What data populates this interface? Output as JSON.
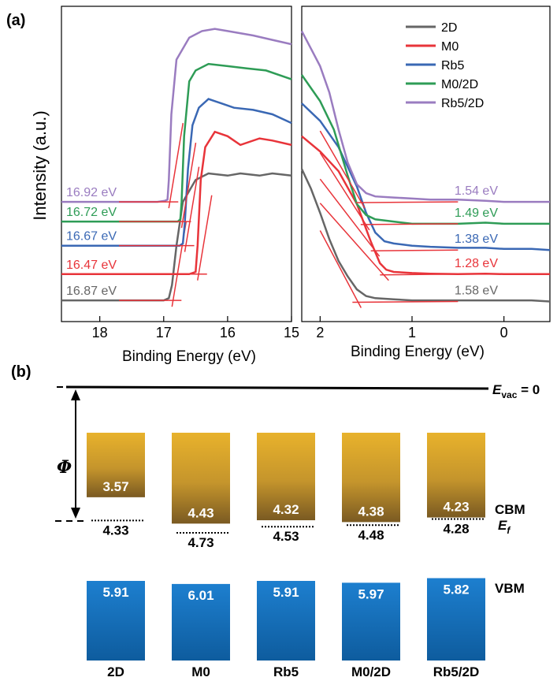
{
  "panel_a_label": "(a)",
  "panel_b_label": "(b)",
  "colors": {
    "2D": "#666666",
    "M0": "#e8343a",
    "Rb5": "#3a68b4",
    "M0/2D": "#2e9c56",
    "Rb5/2D": "#9a7cc0"
  },
  "chart_data": [
    {
      "type": "line",
      "panel": "(a) left",
      "xlabel": "Binding Energy (eV)",
      "ylabel": "Intensity (a.u.)",
      "xlim": [
        18.6,
        15.0
      ],
      "xticks": [
        "18",
        "17",
        "16",
        "15"
      ],
      "series": [
        {
          "name": "2D",
          "cutoff_label": "16.87 eV",
          "x": [
            18.6,
            17.6,
            17.0,
            16.92,
            16.87,
            16.8,
            16.7,
            16.5,
            16.3,
            16.0,
            15.8,
            15.5,
            15.3,
            15.0
          ],
          "y": [
            0.5,
            0.5,
            0.5,
            0.6,
            1.2,
            3.0,
            5.0,
            6.0,
            6.3,
            6.2,
            6.3,
            6.2,
            6.3,
            6.2
          ]
        },
        {
          "name": "M0",
          "cutoff_label": "16.47 eV",
          "x": [
            18.6,
            17.6,
            17.0,
            16.6,
            16.5,
            16.47,
            16.42,
            16.35,
            16.2,
            16.0,
            15.8,
            15.5,
            15.3,
            15.0
          ],
          "y": [
            1.7,
            1.7,
            1.7,
            1.7,
            1.8,
            3.0,
            6.0,
            7.5,
            8.2,
            8.0,
            7.6,
            7.9,
            7.8,
            7.6
          ]
        },
        {
          "name": "Rb5",
          "cutoff_label": "16.67 eV",
          "x": [
            18.6,
            17.6,
            17.0,
            16.75,
            16.7,
            16.67,
            16.62,
            16.55,
            16.45,
            16.3,
            16.1,
            15.9,
            15.6,
            15.3,
            15.0
          ],
          "y": [
            3.0,
            3.0,
            3.0,
            3.0,
            3.1,
            4.0,
            6.5,
            8.5,
            9.3,
            9.7,
            9.5,
            9.3,
            9.2,
            9.0,
            8.6
          ]
        },
        {
          "name": "M0/2D",
          "cutoff_label": "16.72 eV",
          "x": [
            18.6,
            17.6,
            17.0,
            16.78,
            16.74,
            16.72,
            16.68,
            16.6,
            16.5,
            16.3,
            16.0,
            15.7,
            15.4,
            15.0
          ],
          "y": [
            4.1,
            4.1,
            4.1,
            4.1,
            4.2,
            5.0,
            8.0,
            10.5,
            11.0,
            11.3,
            11.2,
            11.1,
            11.0,
            10.6
          ]
        },
        {
          "name": "Rb5/2D",
          "cutoff_label": "16.92 eV",
          "x": [
            18.6,
            17.6,
            17.1,
            16.98,
            16.94,
            16.92,
            16.88,
            16.8,
            16.6,
            16.4,
            16.2,
            16.0,
            15.6,
            15.3,
            15.0
          ],
          "y": [
            5.0,
            5.0,
            5.0,
            5.05,
            5.1,
            6.0,
            9.0,
            11.5,
            12.5,
            12.8,
            12.9,
            12.8,
            12.6,
            12.4,
            12.2
          ]
        }
      ]
    },
    {
      "type": "line",
      "panel": "(a) right",
      "xlabel": "Binding Energy (eV)",
      "xlim": [
        2.2,
        -0.5
      ],
      "xticks": [
        "2",
        "1",
        "0"
      ],
      "series": [
        {
          "name": "2D",
          "vbm_label": "1.58 eV",
          "x": [
            2.2,
            2.1,
            2.0,
            1.9,
            1.8,
            1.7,
            1.6,
            1.5,
            1.4,
            1.2,
            1.0,
            0.8,
            0.5,
            0.2,
            0,
            -0.3,
            -0.5
          ],
          "y": [
            6.5,
            5.6,
            4.5,
            3.3,
            2.3,
            1.6,
            1.0,
            0.7,
            0.6,
            0.55,
            0.5,
            0.5,
            0.5,
            0.5,
            0.5,
            0.5,
            0.45
          ]
        },
        {
          "name": "M0",
          "vbm_label": "1.28 eV",
          "x": [
            2.2,
            2.0,
            1.8,
            1.6,
            1.45,
            1.35,
            1.28,
            1.2,
            1.0,
            0.8,
            0.5,
            0.2,
            0,
            -0.3,
            -0.5
          ],
          "y": [
            8.0,
            7.3,
            6.4,
            4.9,
            3.2,
            2.2,
            1.9,
            1.8,
            1.75,
            1.72,
            1.7,
            1.72,
            1.7,
            1.7,
            1.7
          ]
        },
        {
          "name": "Rb5",
          "vbm_label": "1.38 eV",
          "x": [
            2.2,
            2.0,
            1.8,
            1.6,
            1.5,
            1.4,
            1.3,
            1.2,
            1.0,
            0.8,
            0.5,
            0.2,
            0,
            -0.3,
            -0.5
          ],
          "y": [
            9.5,
            8.7,
            7.5,
            5.7,
            4.5,
            3.6,
            3.2,
            3.1,
            3.0,
            2.95,
            2.9,
            2.9,
            2.85,
            2.85,
            2.8
          ]
        },
        {
          "name": "M0/2D",
          "vbm_label": "1.49 eV",
          "x": [
            2.2,
            2.0,
            1.85,
            1.7,
            1.6,
            1.5,
            1.4,
            1.2,
            1.0,
            0.8,
            0.5,
            0.2,
            0,
            -0.3,
            -0.5
          ],
          "y": [
            10.8,
            9.6,
            8.3,
            6.2,
            4.9,
            4.4,
            4.2,
            4.1,
            4.0,
            4.0,
            4.0,
            4.05,
            4.0,
            4.0,
            4.0
          ]
        },
        {
          "name": "Rb5/2D",
          "vbm_label": "1.54 eV",
          "x": [
            2.2,
            2.1,
            2.0,
            1.9,
            1.8,
            1.7,
            1.6,
            1.5,
            1.4,
            1.2,
            1.0,
            0.8,
            0.5,
            0.2,
            0,
            -0.3,
            -0.5
          ],
          "y": [
            12.8,
            12.0,
            11.2,
            10.0,
            8.3,
            6.8,
            5.8,
            5.4,
            5.25,
            5.2,
            5.15,
            5.1,
            5.1,
            5.05,
            5.0,
            5.0,
            5.0
          ]
        }
      ]
    },
    {
      "type": "bar",
      "panel": "(b)",
      "vacuum_label": "E",
      "vacuum_sub": "vac",
      "vacuum_suffix": " = 0",
      "phi_label": "Φ",
      "cbm_label": "CBM",
      "ef_label": "E",
      "ef_sub": "f",
      "vbm_label": "VBM",
      "categories": [
        "2D",
        "M0",
        "Rb5",
        "M0/2D",
        "Rb5/2D"
      ],
      "cbm": [
        3.57,
        4.43,
        4.32,
        4.38,
        4.23
      ],
      "ef": [
        4.33,
        4.73,
        4.53,
        4.48,
        4.28
      ],
      "vbm": [
        5.91,
        6.01,
        5.91,
        5.97,
        5.82
      ],
      "cbm_labels": [
        "3.57",
        "4.43",
        "4.32",
        "4.38",
        "4.23"
      ],
      "ef_labels": [
        "4.33",
        "4.73",
        "4.53",
        "4.48",
        "4.28"
      ],
      "vbm_labels": [
        "5.91",
        "6.01",
        "5.91",
        "5.97",
        "5.82"
      ]
    }
  ]
}
